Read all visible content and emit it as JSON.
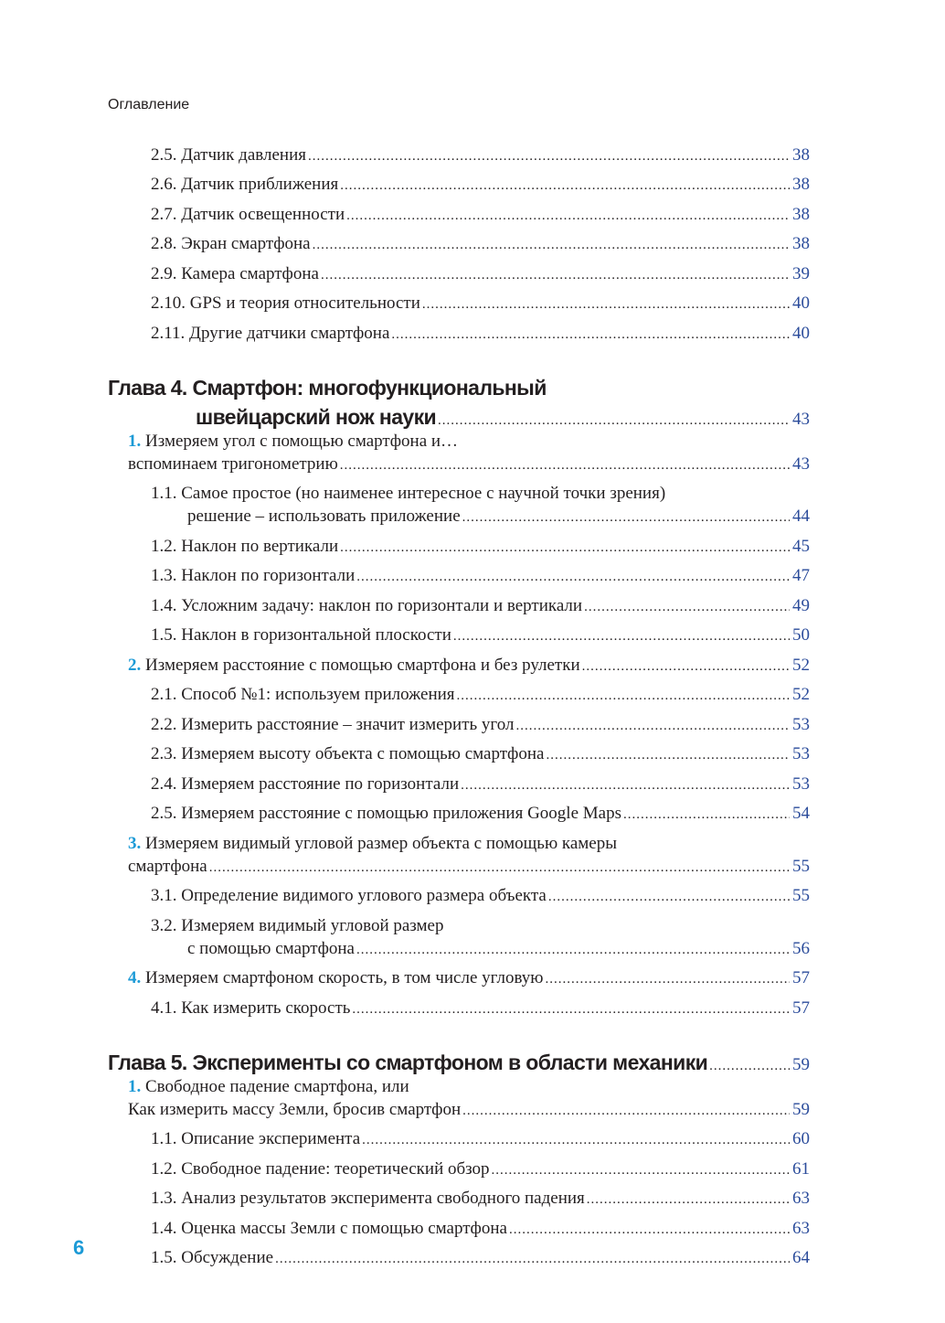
{
  "running_head": "Оглавление",
  "page_number": "6",
  "colors": {
    "accent": "#1c9ad6",
    "page_ref": "#2b4c9b"
  },
  "entries": [
    {
      "type": "lvl2",
      "num": "2.5. ",
      "lines": [
        "Датчик давления"
      ],
      "page": "38"
    },
    {
      "type": "lvl2",
      "num": "2.6. ",
      "lines": [
        "Датчик приближения "
      ],
      "page": "38"
    },
    {
      "type": "lvl2",
      "num": "2.7. ",
      "lines": [
        "Датчик освещенности "
      ],
      "page": "38"
    },
    {
      "type": "lvl2",
      "num": "2.8. ",
      "lines": [
        "Экран смартфона"
      ],
      "page": "38"
    },
    {
      "type": "lvl2",
      "num": "2.9. ",
      "lines": [
        "Камера смартфона"
      ],
      "page": "39"
    },
    {
      "type": "lvl2",
      "num": "2.10. ",
      "lines": [
        "GPS и теория относительности"
      ],
      "page": "40"
    },
    {
      "type": "lvl2",
      "num": "2.11. ",
      "lines": [
        "Другие датчики смартфона"
      ],
      "page": "40"
    },
    {
      "type": "chapter",
      "num": "Глава 4. ",
      "lines": [
        "Смартфон: многофункциональный",
        "швейцарский нож науки"
      ],
      "page": "43"
    },
    {
      "type": "lvl1",
      "num": "1. ",
      "lines": [
        "Измеряем угол с помощью смартфона и…",
        "вспоминаем тригонометрию"
      ],
      "page": "43"
    },
    {
      "type": "lvl2",
      "num": "1.1. ",
      "lines": [
        "Самое простое (но наименее интересное с научной точки зрения)",
        "решение – использовать приложение"
      ],
      "page": "44"
    },
    {
      "type": "lvl2",
      "num": "1.2. ",
      "lines": [
        "Наклон по вертикали"
      ],
      "page": "45"
    },
    {
      "type": "lvl2",
      "num": "1.3. ",
      "lines": [
        "Наклон по горизонтали"
      ],
      "page": "47"
    },
    {
      "type": "lvl2",
      "num": "1.4. ",
      "lines": [
        "Усложним задачу: наклон по горизонтали и вертикали"
      ],
      "page": "49"
    },
    {
      "type": "lvl2",
      "num": "1.5. ",
      "lines": [
        "Наклон в горизонтальной плоскости"
      ],
      "page": "50"
    },
    {
      "type": "lvl1",
      "num": "2. ",
      "lines": [
        "Измеряем расстояние с помощью смартфона и без рулетки"
      ],
      "page": "52"
    },
    {
      "type": "lvl2",
      "num": "2.1. ",
      "lines": [
        "Способ №1: используем приложения"
      ],
      "page": "52"
    },
    {
      "type": "lvl2",
      "num": "2.2. ",
      "lines": [
        "Измерить расстояние – значит измерить угол"
      ],
      "page": "53"
    },
    {
      "type": "lvl2",
      "num": "2.3. ",
      "lines": [
        "Измеряем высоту объекта с помощью смартфона"
      ],
      "page": "53"
    },
    {
      "type": "lvl2",
      "num": "2.4. ",
      "lines": [
        "Измеряем расстояние по горизонтали"
      ],
      "page": "53"
    },
    {
      "type": "lvl2",
      "num": "2.5. ",
      "lines": [
        "Измеряем расстояние с помощью приложения Google Maps"
      ],
      "page": "54"
    },
    {
      "type": "lvl1",
      "num": "3. ",
      "lines": [
        "Измеряем видимый угловой размер объекта с помощью камеры",
        "смартфона"
      ],
      "page": "55"
    },
    {
      "type": "lvl2",
      "num": "3.1. ",
      "lines": [
        "Определение видимого углового размера объекта"
      ],
      "page": "55"
    },
    {
      "type": "lvl2",
      "num": "3.2. ",
      "lines": [
        "Измеряем видимый угловой размер",
        "с помощью смартфона"
      ],
      "page": "56"
    },
    {
      "type": "lvl1",
      "num": "4. ",
      "lines": [
        "Измеряем смартфоном скорость, в том числе угловую"
      ],
      "page": "57"
    },
    {
      "type": "lvl2",
      "num": "4.1. ",
      "lines": [
        "Как измерить скорость"
      ],
      "page": "57"
    },
    {
      "type": "chapter",
      "num": "Глава 5. ",
      "lines": [
        "Эксперименты со смартфоном в области механики"
      ],
      "page": "59"
    },
    {
      "type": "lvl1",
      "num": "1. ",
      "lines": [
        "Свободное падение смартфона, или",
        "Как измерить массу Земли, бросив смартфон"
      ],
      "page": "59"
    },
    {
      "type": "lvl2",
      "num": "1.1. ",
      "lines": [
        "Описание эксперимента"
      ],
      "page": "60"
    },
    {
      "type": "lvl2",
      "num": "1.2. ",
      "lines": [
        "Свободное падение: теоретический обзор"
      ],
      "page": "61"
    },
    {
      "type": "lvl2",
      "num": "1.3. ",
      "lines": [
        "Анализ результатов эксперимента свободного падения"
      ],
      "page": "63"
    },
    {
      "type": "lvl2",
      "num": "1.4. ",
      "lines": [
        "Оценка массы Земли с помощью смартфона"
      ],
      "page": "63"
    },
    {
      "type": "lvl2",
      "num": "1.5. ",
      "lines": [
        "Обсуждение"
      ],
      "page": "64"
    }
  ]
}
